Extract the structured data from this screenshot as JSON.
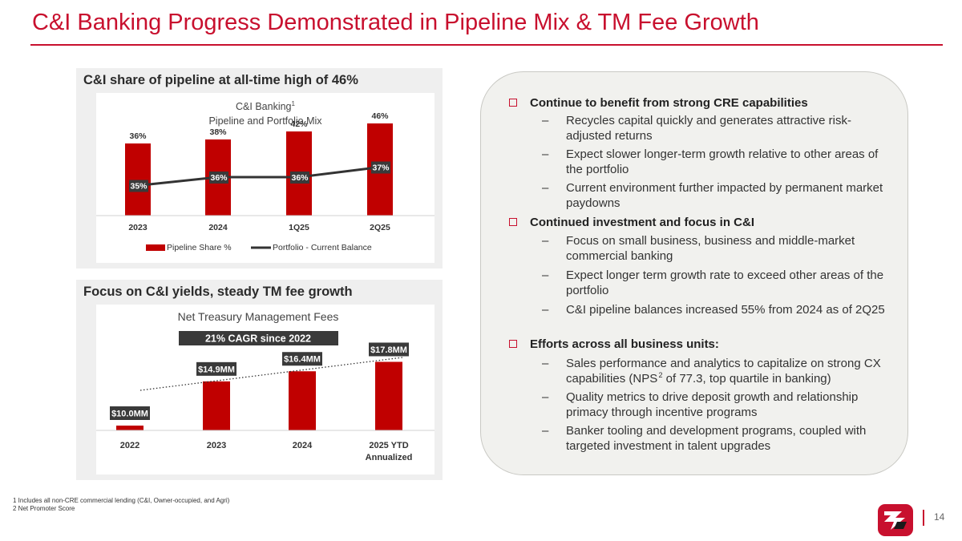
{
  "title": "C&I Banking Progress Demonstrated in Pipeline Mix & TM Fee Growth",
  "panel_top": {
    "heading": "C&I share of pipeline at all-time high of 46%"
  },
  "panel_bottom": {
    "heading": "Focus on C&I yields, steady TM fee growth"
  },
  "chart_data": [
    {
      "type": "bar",
      "title": "C&I Banking",
      "title_sup": "1",
      "subtitle": "Pipeline and Portfolio Mix",
      "categories": [
        "2023",
        "2024",
        "1Q25",
        "2Q25"
      ],
      "series": [
        {
          "name": "Pipeline Share %",
          "kind": "bar",
          "values": [
            36,
            38,
            42,
            46
          ],
          "labels": [
            "36%",
            "38%",
            "42%",
            "46%"
          ],
          "color": "#c00000"
        },
        {
          "name": "Portfolio - Current Balance",
          "kind": "line",
          "values": [
            35,
            36,
            36,
            37
          ],
          "labels": [
            "35%",
            "36%",
            "36%",
            "37%"
          ],
          "color": "#333333"
        }
      ],
      "legend": [
        "Pipeline Share %",
        "Portfolio - Current Balance"
      ],
      "legend_position": "bottom",
      "ylim": [
        0,
        50
      ]
    },
    {
      "type": "bar",
      "title": "Net Treasury Management Fees",
      "annotation": "21% CAGR since 2022",
      "categories": [
        "2022",
        "2023",
        "2024",
        "2025 YTD Annualized"
      ],
      "category_lines": [
        [
          "2022"
        ],
        [
          "2023"
        ],
        [
          "2024"
        ],
        [
          "2025 YTD",
          "Annualized"
        ]
      ],
      "values": [
        10.0,
        14.9,
        16.4,
        17.8
      ],
      "labels": [
        "$10.0MM",
        "$14.9MM",
        "$16.4MM",
        "$17.8MM"
      ],
      "color": "#c00000",
      "trendline": "dotted",
      "ylim": [
        0,
        20
      ]
    }
  ],
  "bullets": [
    {
      "head": "Continue to benefit from strong CRE capabilities",
      "items": [
        "Recycles capital quickly and generates attractive risk-adjusted returns",
        "Expect slower longer-term growth relative to other areas of the portfolio",
        "Current environment further impacted by permanent market paydowns"
      ]
    },
    {
      "head": "Continued investment and focus in C&I",
      "items": [
        "Focus on small business, business and middle-market commercial banking",
        "Expect longer term growth rate to exceed other areas of the portfolio",
        "C&I pipeline balances increased 55% from 2024 as of 2Q25"
      ]
    },
    {
      "head": "Efforts across all business units:",
      "items": [
        "Sales performance and analytics to capitalize on strong CX capabilities (NPS² of 77.3, top quartile in banking)",
        "Quality metrics to drive deposit growth and relationship primacy through incentive programs",
        "Banker tooling and development programs, coupled with targeted investment in talent upgrades"
      ]
    }
  ],
  "dash_glyph": "–",
  "footnotes": [
    "1  Includes all non-CRE commercial lending (C&I, Owner-occupied, and Agri)",
    "2  Net Promoter Score"
  ],
  "page_number": "14",
  "colors": {
    "brand": "#c8102e",
    "bar": "#c00000",
    "line": "#333333"
  }
}
